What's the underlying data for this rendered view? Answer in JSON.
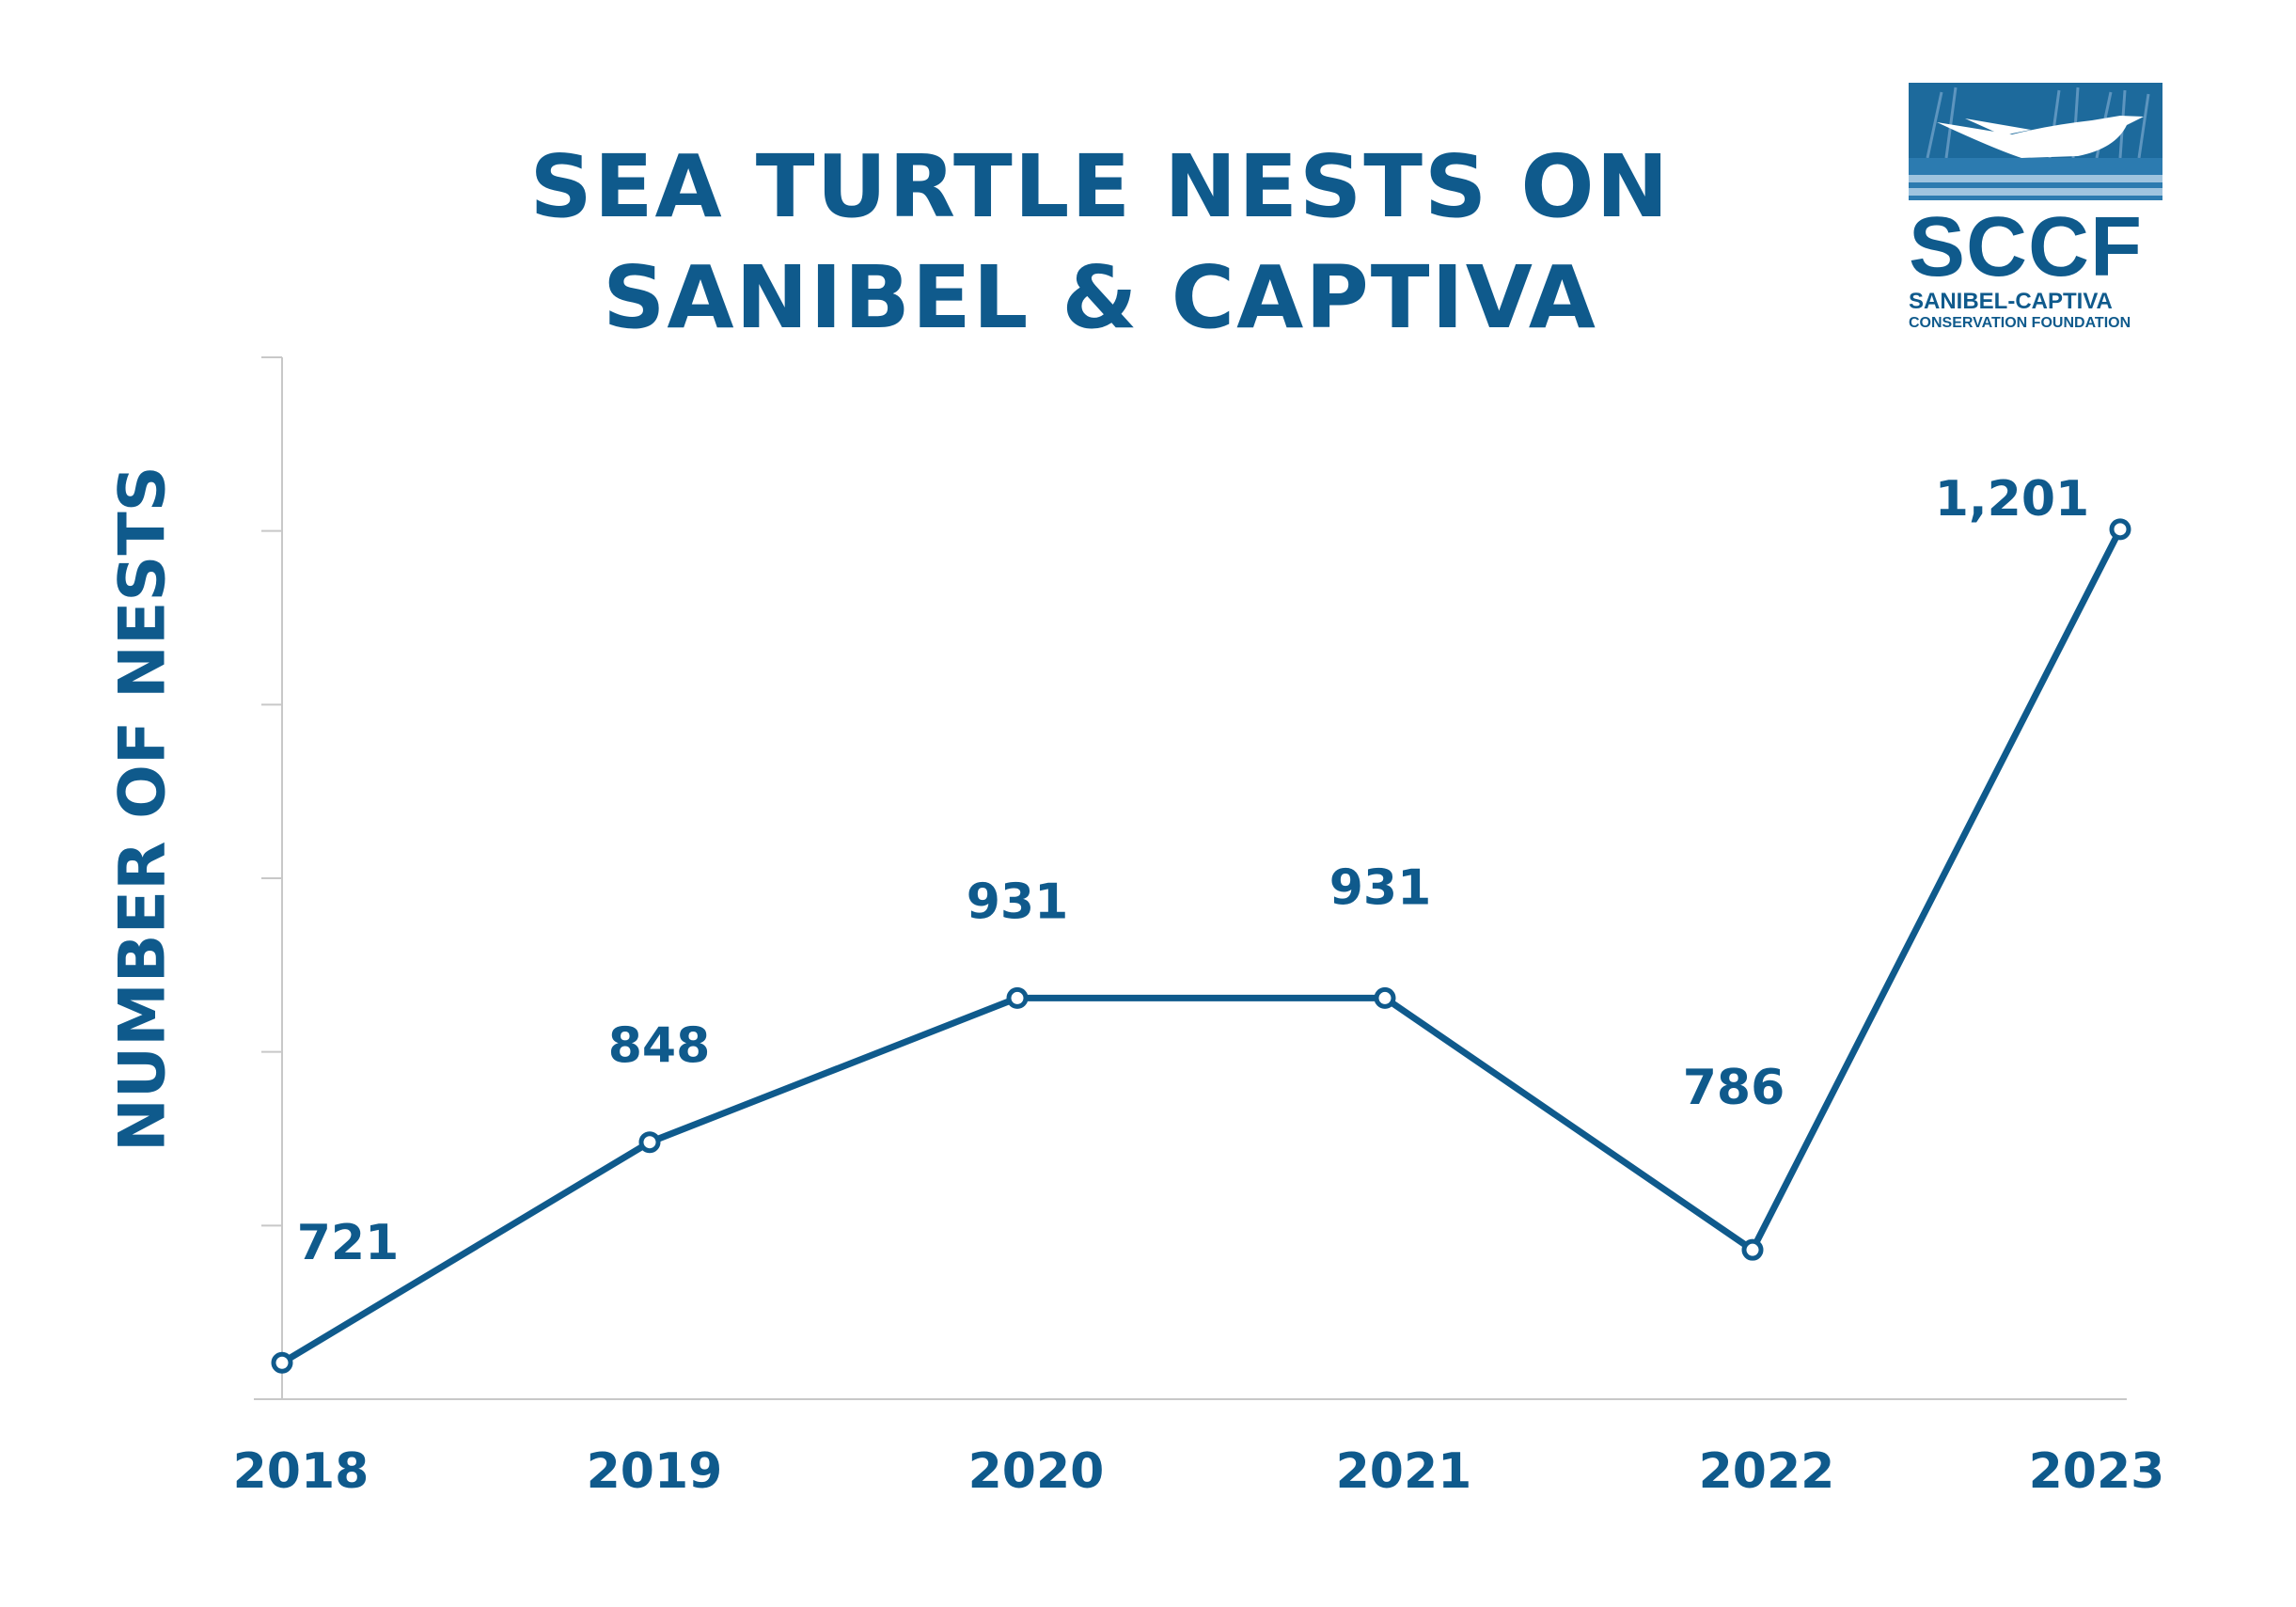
{
  "logo": {
    "abbr": "SCCF",
    "line1": "SANIBEL-CAPTIVA",
    "line2": "CONSERVATION FOUNDATION"
  },
  "colors": {
    "primary": "#0f5a8c",
    "axis": "#c8c8c8"
  },
  "chart_data": {
    "type": "line",
    "title": [
      "SEA TURTLE NESTS ON",
      "SANIBEL & CAPTIVA"
    ],
    "xlabel": "",
    "ylabel": "NUMBER OF NESTS",
    "categories": [
      "2018",
      "2019",
      "2020",
      "2021",
      "2022",
      "2023"
    ],
    "series": [
      {
        "values": [
          721,
          848,
          931,
          931,
          786,
          1201
        ]
      }
    ],
    "data_labels": [
      "721",
      "848",
      "931",
      "931",
      "786",
      "1,201"
    ],
    "ylim": [
      700,
      1300
    ],
    "grid": false,
    "legend": "none"
  }
}
